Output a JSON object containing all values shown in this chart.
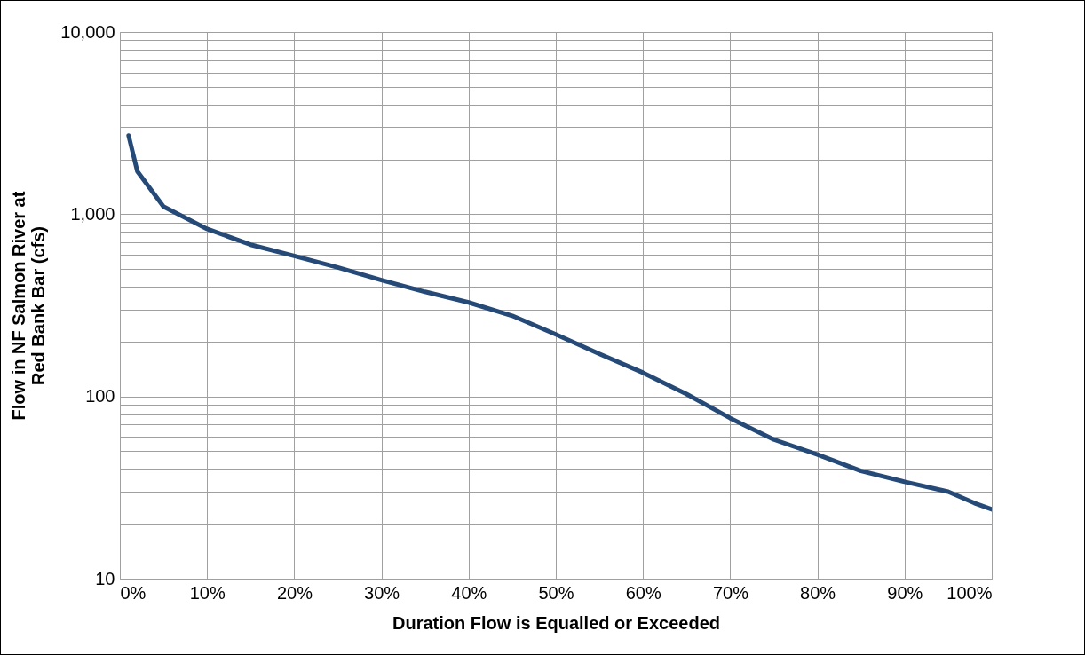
{
  "chart_data": {
    "type": "line",
    "xlabel": "Duration Flow is Equalled or Exceeded",
    "ylabel": "Flow in NF Salmon River at\nRed Bank Bar (cfs)",
    "x": [
      1,
      2,
      5,
      10,
      15,
      20,
      25,
      30,
      35,
      40,
      45,
      50,
      55,
      60,
      65,
      70,
      75,
      80,
      85,
      90,
      95,
      98,
      100
    ],
    "series": [
      {
        "color": "#264a78",
        "values": [
          2700,
          1720,
          1100,
          830,
          680,
          590,
          510,
          435,
          375,
          328,
          277,
          219,
          171,
          135,
          103,
          76,
          58,
          48,
          39,
          34,
          30,
          26,
          24
        ]
      }
    ],
    "log": true,
    "grid": true,
    "marker": "none",
    "line_style": "solid",
    "xlim": [
      0,
      100
    ],
    "xticks": [
      {
        "value": 0,
        "label": "0%"
      },
      {
        "value": 10,
        "label": "10%"
      },
      {
        "value": 20,
        "label": "20%"
      },
      {
        "value": 30,
        "label": "30%"
      },
      {
        "value": 40,
        "label": "40%"
      },
      {
        "value": 50,
        "label": "50%"
      },
      {
        "value": 60,
        "label": "60%"
      },
      {
        "value": 70,
        "label": "70%"
      },
      {
        "value": 80,
        "label": "80%"
      },
      {
        "value": 90,
        "label": "90%"
      },
      {
        "value": 100,
        "label": "100%"
      }
    ],
    "ylim": [
      10,
      10000
    ],
    "yticks": [
      10,
      {
        "value": 20,
        "label": null
      },
      {
        "value": 30,
        "label": null
      },
      {
        "value": 40,
        "label": null
      },
      {
        "value": 50,
        "label": null
      },
      {
        "value": 60,
        "label": null
      },
      {
        "value": 70,
        "label": null
      },
      {
        "value": 80,
        "label": null
      },
      {
        "value": 90,
        "label": null
      },
      100,
      {
        "value": 200,
        "label": null
      },
      {
        "value": 300,
        "label": null
      },
      {
        "value": 400,
        "label": null
      },
      {
        "value": 500,
        "label": null
      },
      {
        "value": 600,
        "label": null
      },
      {
        "value": 700,
        "label": null
      },
      {
        "value": 800,
        "label": null
      },
      {
        "value": 900,
        "label": null
      },
      {
        "value": 1000,
        "label": "1,000"
      },
      {
        "value": 2000,
        "label": null
      },
      {
        "value": 3000,
        "label": null
      },
      {
        "value": 4000,
        "label": null
      },
      {
        "value": 5000,
        "label": null
      },
      {
        "value": 6000,
        "label": null
      },
      {
        "value": 7000,
        "label": null
      },
      {
        "value": 8000,
        "label": null
      },
      {
        "value": 9000,
        "label": null
      },
      {
        "value": 10000,
        "label": "10,000"
      }
    ]
  }
}
